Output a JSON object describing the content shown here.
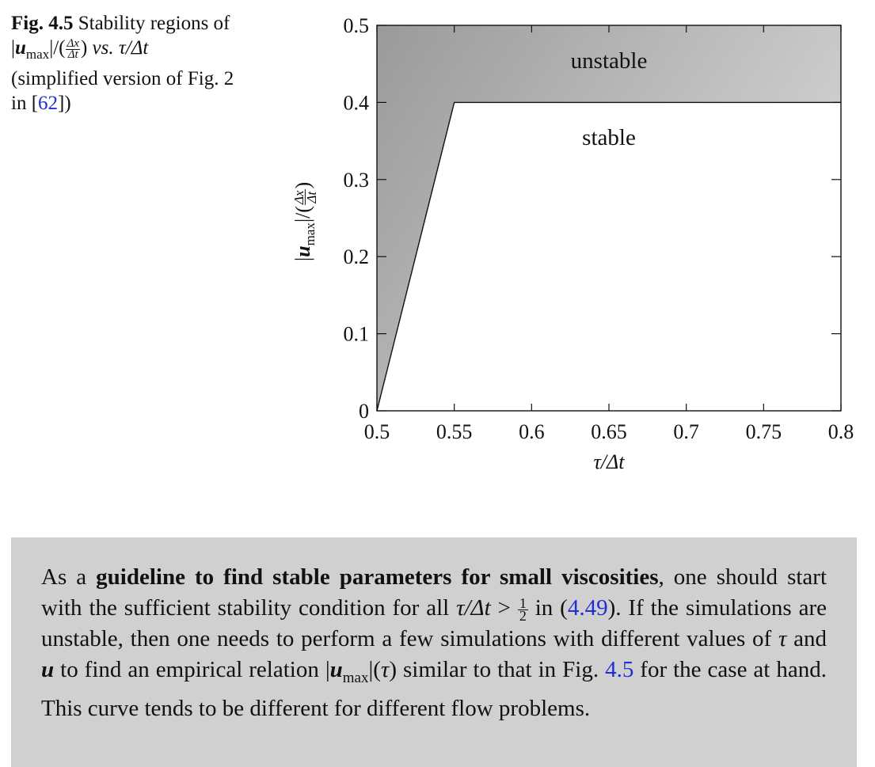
{
  "caption": {
    "fig_label": "Fig. 4.5",
    "text_before": "Stability regions of",
    "umax_u": "u",
    "umax_sub": "max",
    "frac_num": "Δx",
    "frac_den": "Δt",
    "vs": "vs.",
    "tau_expr": "τ/Δt",
    "simplified": "(simplified version of Fig. 2",
    "in_text": "in [",
    "ref": "62",
    "close": "])"
  },
  "chart_data": {
    "type": "area",
    "xlabel": "τ/Δt",
    "ylabel": "|u_max|/(Δx/Δt)",
    "xlim": [
      0.5,
      0.8
    ],
    "ylim": [
      0,
      0.5
    ],
    "x_ticks": [
      "0.5",
      "0.55",
      "0.6",
      "0.65",
      "0.7",
      "0.75",
      "0.8"
    ],
    "y_ticks": [
      "0",
      "0.1",
      "0.2",
      "0.3",
      "0.4",
      "0.5"
    ],
    "boundary": {
      "x": [
        0.5,
        0.55,
        0.8
      ],
      "y": [
        0,
        0.4,
        0.4
      ]
    },
    "regions": [
      {
        "label": "unstable",
        "at": [
          0.65,
          0.455
        ]
      },
      {
        "label": "stable",
        "at": [
          0.65,
          0.355
        ]
      }
    ],
    "colors": {
      "unstable_dark": "#9a9a9a",
      "unstable_light": "#d6d6d6",
      "stable": "#ffffff"
    }
  },
  "guideline": {
    "p1": "As a ",
    "bold": "guideline to find stable parameters for small viscosities",
    "p2": ", one should start with the sufficient stability condition for all ",
    "tau_expr": "τ/Δt",
    "gt": " > ",
    "half_num": "1",
    "half_den": "2",
    "p3": " in (",
    "ref1": "4.49",
    "p4": "). If the simulations are unstable, then one needs to perform a few simulations with different values of ",
    "tau": "τ",
    "and": " and ",
    "u": "u",
    "p5": " to find an empirical relation |",
    "umax_u": "u",
    "umax_sub": "max",
    "p6": "|(",
    "tau2": "τ",
    "p7": ") similar to that in Fig. ",
    "ref2": "4.5",
    "p8": " for the case at hand. This curve tends to be different for different flow problems."
  }
}
